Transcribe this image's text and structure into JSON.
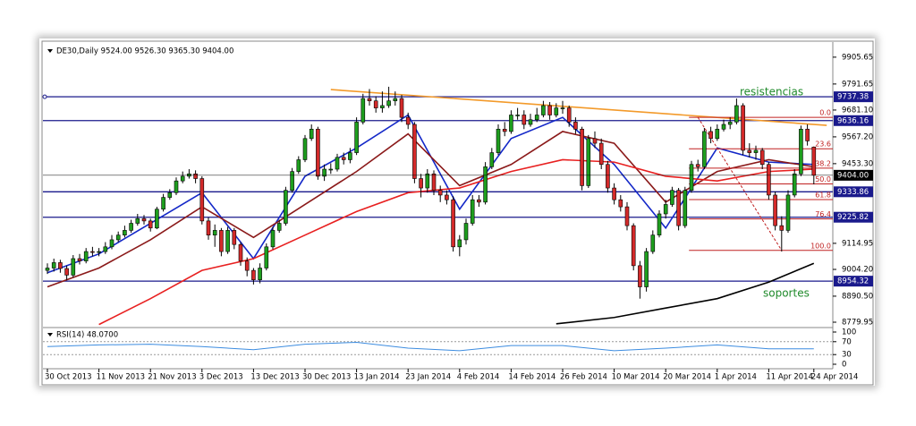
{
  "chart_data": {
    "type": "candlestick",
    "title": "DE30,Daily 9524.00 9526.30 9365.30 9404.00",
    "categories": [
      "30 Oct 2013",
      null,
      null,
      null,
      null,
      null,
      null,
      null,
      "11 Nov 2013",
      null,
      null,
      null,
      null,
      null,
      null,
      null,
      "21 Nov 2013",
      null,
      null,
      null,
      null,
      null,
      null,
      null,
      "3 Dec 2013",
      null,
      null,
      null,
      null,
      null,
      null,
      null,
      "13 Dec 2013",
      null,
      null,
      null,
      null,
      null,
      null,
      null,
      "30 Dec 2013",
      null,
      null,
      null,
      null,
      null,
      null,
      null,
      "13 Jan 2014",
      null,
      null,
      null,
      null,
      null,
      null,
      null,
      "23 Jan 2014",
      null,
      null,
      null,
      null,
      null,
      null,
      null,
      "4 Feb 2014",
      null,
      null,
      null,
      null,
      null,
      null,
      null,
      "14 Feb 2014",
      null,
      null,
      null,
      null,
      null,
      null,
      null,
      "26 Feb 2014",
      null,
      null,
      null,
      null,
      null,
      null,
      null,
      "10 Mar 2014",
      null,
      null,
      null,
      null,
      null,
      null,
      null,
      "20 Mar 2014",
      null,
      null,
      null,
      null,
      null,
      null,
      null,
      "1 Apr 2014",
      null,
      null,
      null,
      null,
      null,
      null,
      null,
      "11 Apr 2014",
      null,
      null,
      null,
      null,
      null,
      null,
      "24 Apr 2014"
    ],
    "ohlc": [
      [
        9000,
        9030,
        8985,
        9010
      ],
      [
        9010,
        9050,
        8995,
        9033
      ],
      [
        9033,
        9045,
        8990,
        9008
      ],
      [
        9008,
        9020,
        8960,
        8980
      ],
      [
        8980,
        9065,
        8970,
        9050
      ],
      [
        9050,
        9070,
        9025,
        9040
      ],
      [
        9040,
        9095,
        9030,
        9080
      ],
      [
        9080,
        9100,
        9060,
        9078
      ],
      [
        9078,
        9095,
        9060,
        9080
      ],
      [
        9080,
        9120,
        9070,
        9100
      ],
      [
        9100,
        9150,
        9090,
        9130
      ],
      [
        9130,
        9165,
        9120,
        9150
      ],
      [
        9150,
        9190,
        9140,
        9170
      ],
      [
        9170,
        9215,
        9160,
        9200
      ],
      [
        9200,
        9240,
        9190,
        9220
      ],
      [
        9220,
        9235,
        9195,
        9210
      ],
      [
        9210,
        9220,
        9165,
        9180
      ],
      [
        9180,
        9270,
        9175,
        9260
      ],
      [
        9260,
        9325,
        9250,
        9310
      ],
      [
        9310,
        9345,
        9300,
        9330
      ],
      [
        9330,
        9395,
        9320,
        9380
      ],
      [
        9380,
        9420,
        9370,
        9400
      ],
      [
        9400,
        9430,
        9390,
        9410
      ],
      [
        9410,
        9425,
        9370,
        9390
      ],
      [
        9390,
        9400,
        9195,
        9210
      ],
      [
        9210,
        9225,
        9130,
        9150
      ],
      [
        9150,
        9195,
        9100,
        9170
      ],
      [
        9170,
        9180,
        9060,
        9080
      ],
      [
        9080,
        9185,
        9070,
        9170
      ],
      [
        9170,
        9180,
        9090,
        9110
      ],
      [
        9110,
        9120,
        9020,
        9040
      ],
      [
        9040,
        9055,
        8975,
        9000
      ],
      [
        9000,
        9010,
        8940,
        8960
      ],
      [
        8960,
        9030,
        8945,
        9010
      ],
      [
        9010,
        9115,
        9000,
        9100
      ],
      [
        9100,
        9185,
        9090,
        9170
      ],
      [
        9170,
        9215,
        9160,
        9200
      ],
      [
        9200,
        9355,
        9190,
        9340
      ],
      [
        9340,
        9435,
        9330,
        9420
      ],
      [
        9420,
        9485,
        9410,
        9470
      ],
      [
        9470,
        9575,
        9460,
        9560
      ],
      [
        9560,
        9620,
        9550,
        9600
      ],
      [
        9600,
        9610,
        9385,
        9400
      ],
      [
        9400,
        9450,
        9380,
        9430
      ],
      [
        9430,
        9455,
        9410,
        9430
      ],
      [
        9430,
        9495,
        9420,
        9480
      ],
      [
        9480,
        9500,
        9450,
        9470
      ],
      [
        9470,
        9520,
        9455,
        9500
      ],
      [
        9500,
        9650,
        9490,
        9630
      ],
      [
        9630,
        9750,
        9620,
        9730
      ],
      [
        9730,
        9770,
        9700,
        9720
      ],
      [
        9720,
        9740,
        9670,
        9690
      ],
      [
        9690,
        9760,
        9670,
        9700
      ],
      [
        9700,
        9780,
        9690,
        9720
      ],
      [
        9720,
        9760,
        9700,
        9730
      ],
      [
        9730,
        9745,
        9630,
        9650
      ],
      [
        9650,
        9670,
        9600,
        9620
      ],
      [
        9620,
        9630,
        9370,
        9390
      ],
      [
        9390,
        9410,
        9310,
        9350
      ],
      [
        9350,
        9430,
        9330,
        9410
      ],
      [
        9410,
        9425,
        9320,
        9340
      ],
      [
        9340,
        9360,
        9290,
        9320
      ],
      [
        9320,
        9340,
        9280,
        9300
      ],
      [
        9300,
        9315,
        9080,
        9100
      ],
      [
        9100,
        9150,
        9060,
        9130
      ],
      [
        9130,
        9220,
        9110,
        9200
      ],
      [
        9200,
        9320,
        9190,
        9300
      ],
      [
        9300,
        9320,
        9270,
        9290
      ],
      [
        9290,
        9460,
        9280,
        9440
      ],
      [
        9440,
        9520,
        9430,
        9500
      ],
      [
        9500,
        9620,
        9490,
        9600
      ],
      [
        9600,
        9630,
        9570,
        9590
      ],
      [
        9590,
        9680,
        9580,
        9660
      ],
      [
        9660,
        9690,
        9640,
        9660
      ],
      [
        9660,
        9680,
        9600,
        9620
      ],
      [
        9620,
        9665,
        9610,
        9640
      ],
      [
        9640,
        9690,
        9630,
        9660
      ],
      [
        9660,
        9720,
        9650,
        9700
      ],
      [
        9700,
        9715,
        9640,
        9660
      ],
      [
        9660,
        9710,
        9650,
        9690
      ],
      [
        9690,
        9720,
        9665,
        9690
      ],
      [
        9690,
        9700,
        9610,
        9630
      ],
      [
        9630,
        9650,
        9580,
        9600
      ],
      [
        9600,
        9610,
        9340,
        9360
      ],
      [
        9360,
        9575,
        9350,
        9560
      ],
      [
        9560,
        9590,
        9520,
        9540
      ],
      [
        9540,
        9560,
        9430,
        9450
      ],
      [
        9450,
        9465,
        9330,
        9350
      ],
      [
        9350,
        9370,
        9280,
        9300
      ],
      [
        9300,
        9320,
        9250,
        9270
      ],
      [
        9270,
        9290,
        9170,
        9190
      ],
      [
        9190,
        9200,
        9000,
        9020
      ],
      [
        9020,
        9040,
        8880,
        8930
      ],
      [
        8930,
        9095,
        8910,
        9080
      ],
      [
        9080,
        9170,
        9070,
        9150
      ],
      [
        9150,
        9255,
        9140,
        9240
      ],
      [
        9240,
        9300,
        9220,
        9280
      ],
      [
        9280,
        9355,
        9270,
        9340
      ],
      [
        9340,
        9350,
        9170,
        9190
      ],
      [
        9190,
        9355,
        9180,
        9340
      ],
      [
        9340,
        9465,
        9330,
        9450
      ],
      [
        9450,
        9470,
        9420,
        9440
      ],
      [
        9440,
        9605,
        9430,
        9590
      ],
      [
        9590,
        9610,
        9540,
        9560
      ],
      [
        9560,
        9620,
        9550,
        9600
      ],
      [
        9600,
        9640,
        9590,
        9620
      ],
      [
        9620,
        9650,
        9600,
        9630
      ],
      [
        9630,
        9730,
        9620,
        9700
      ],
      [
        9700,
        9710,
        9490,
        9510
      ],
      [
        9510,
        9540,
        9480,
        9500
      ],
      [
        9500,
        9530,
        9470,
        9510
      ],
      [
        9510,
        9520,
        9430,
        9450
      ],
      [
        9450,
        9460,
        9300,
        9320
      ],
      [
        9320,
        9335,
        9170,
        9190
      ],
      [
        9190,
        9230,
        9080,
        9170
      ],
      [
        9170,
        9340,
        9160,
        9320
      ],
      [
        9320,
        9430,
        9310,
        9410
      ],
      [
        9410,
        9615,
        9400,
        9600
      ],
      [
        9600,
        9620,
        9530,
        9550
      ],
      [
        9524,
        9526.3,
        9365.3,
        9404
      ]
    ],
    "up_color": "#1e9e1e",
    "down_color": "#d42a2a",
    "ylim": [
      8761,
      9966
    ],
    "yticks": [
      9905.65,
      9791.65,
      {
        "value": 9681.1,
        "label": "9681.10"
      },
      {
        "value": 9567.2,
        "label": "9567.20"
      },
      {
        "value": 9453.3,
        "label": "9453.30"
      },
      9114.95,
      {
        "value": 9004.2,
        "label": "9004.20"
      },
      {
        "value": 8890.5,
        "label": "8890.50"
      },
      8779.95
    ],
    "series": [
      {
        "color": "#1428c8",
        "x": [
          0,
          8,
          16,
          24,
          32,
          40,
          48,
          56,
          64,
          72,
          80,
          88,
          96,
          104,
          112,
          119
        ],
        "values": [
          8990,
          9070,
          9200,
          9330,
          9050,
          9400,
          9520,
          9660,
          9260,
          9560,
          9650,
          9450,
          9180,
          9520,
          9460,
          9450
        ]
      },
      {
        "color": "#8b1a1a",
        "x": [
          0,
          8,
          16,
          24,
          32,
          40,
          48,
          56,
          64,
          72,
          80,
          88,
          96,
          104,
          112,
          119
        ],
        "values": [
          8930,
          9010,
          9130,
          9270,
          9140,
          9280,
          9420,
          9580,
          9360,
          9450,
          9590,
          9540,
          9290,
          9420,
          9470,
          9440
        ]
      },
      {
        "color": "#e82020",
        "x": [
          8,
          16,
          24,
          32,
          40,
          48,
          56,
          64,
          72,
          80,
          88,
          96,
          104,
          112,
          119
        ],
        "values": [
          8770,
          8880,
          9000,
          9050,
          9150,
          9250,
          9330,
          9350,
          9420,
          9470,
          9460,
          9400,
          9380,
          9420,
          9430
        ]
      },
      {
        "color": "#000000",
        "x": [
          79,
          88,
          96,
          104,
          112,
          119
        ],
        "values": [
          8773,
          8800,
          8840,
          8880,
          8950,
          9030
        ]
      }
    ],
    "levels": [
      9737.38,
      9636.16,
      9333.86,
      9225.82,
      8954.32
    ],
    "level_color": "#1a1a8c",
    "current": {
      "value": 9404,
      "label": "9404.00"
    },
    "trendline": {
      "color": "#f39a2a",
      "x": [
        44,
        121
      ],
      "values": [
        9768,
        9616
      ]
    },
    "fibonacci": {
      "color": "#c02020",
      "x": [
        101,
        114
      ],
      "high": 9650,
      "low": 9085,
      "levels": [
        {
          "value": 0,
          "label": "0.0"
        },
        23.6,
        38.2,
        {
          "value": 50,
          "label": "50.0"
        },
        61.8,
        76.4,
        {
          "value": 100,
          "label": "100.0"
        }
      ]
    },
    "annotations": [
      "resistencias",
      "soportes"
    ],
    "rsi": {
      "title": "RSI(14) 48.0700",
      "color": "#3c8ce0",
      "ylim": [
        0,
        100
      ],
      "yticks": [
        100,
        70,
        30,
        0
      ],
      "x": [
        0,
        8,
        16,
        24,
        32,
        40,
        48,
        56,
        64,
        72,
        80,
        88,
        96,
        104,
        112,
        119
      ],
      "values": [
        55,
        60,
        62,
        55,
        45,
        62,
        68,
        50,
        42,
        58,
        58,
        42,
        50,
        60,
        48,
        48.07
      ]
    }
  }
}
